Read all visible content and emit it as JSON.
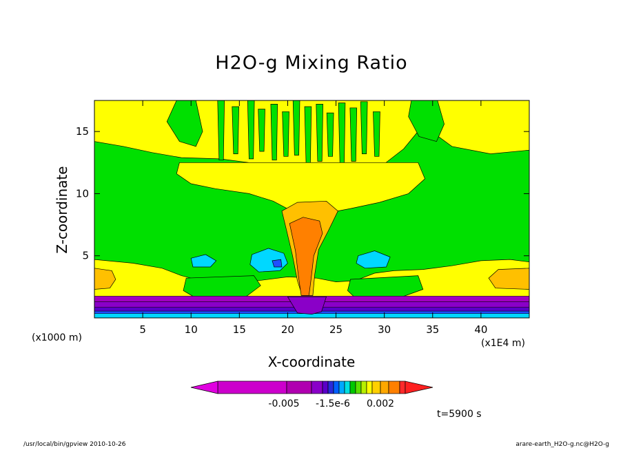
{
  "chart_data": {
    "type": "heatmap",
    "subtype": "filled-contour",
    "title": "H2O-g Mixing Ratio",
    "xlabel": "X-coordinate",
    "ylabel": "Z-coordinate",
    "x_unit": "(x1000 m)",
    "x_scale_note": "(x1E4 m)",
    "xlim": [
      0,
      45
    ],
    "ylim": [
      0,
      17.5
    ],
    "x_ticks": [
      "5",
      "10",
      "15",
      "20",
      "25",
      "30",
      "35",
      "40"
    ],
    "y_ticks": [
      "5",
      "10",
      "15"
    ],
    "x_tick_values": [
      5,
      10,
      15,
      20,
      25,
      30,
      35,
      40
    ],
    "y_tick_values": [
      5,
      10,
      15
    ],
    "grid": false,
    "colorbar": {
      "orientation": "horizontal",
      "tick_labels": [
        "-0.005",
        "-1.5e-6",
        "0.002"
      ],
      "colors": [
        "#cc00cc",
        "#b000b0",
        "#8a00c8",
        "#5a00c8",
        "#2a2ad8",
        "#0060ff",
        "#00a8ff",
        "#00e0e0",
        "#00c800",
        "#5ae000",
        "#b8f000",
        "#ffff00",
        "#ffd000",
        "#ffa800",
        "#ff8000",
        "#ff2a2a"
      ]
    },
    "time_label": "t=5900 s"
  },
  "footer": {
    "left": "/usr/local/bin/gpview  2010-10-26",
    "right": "arare-earth_H2O-g.nc@H2O-g"
  },
  "colors": {
    "background_level": "#00e000",
    "positive_low": "#ffff00",
    "positive_mid": "#ffc000",
    "positive_high": "#ff8000",
    "negative_low": "#00d8ff",
    "negative_mid": "#2050ff",
    "negative_high": "#a000c0"
  }
}
